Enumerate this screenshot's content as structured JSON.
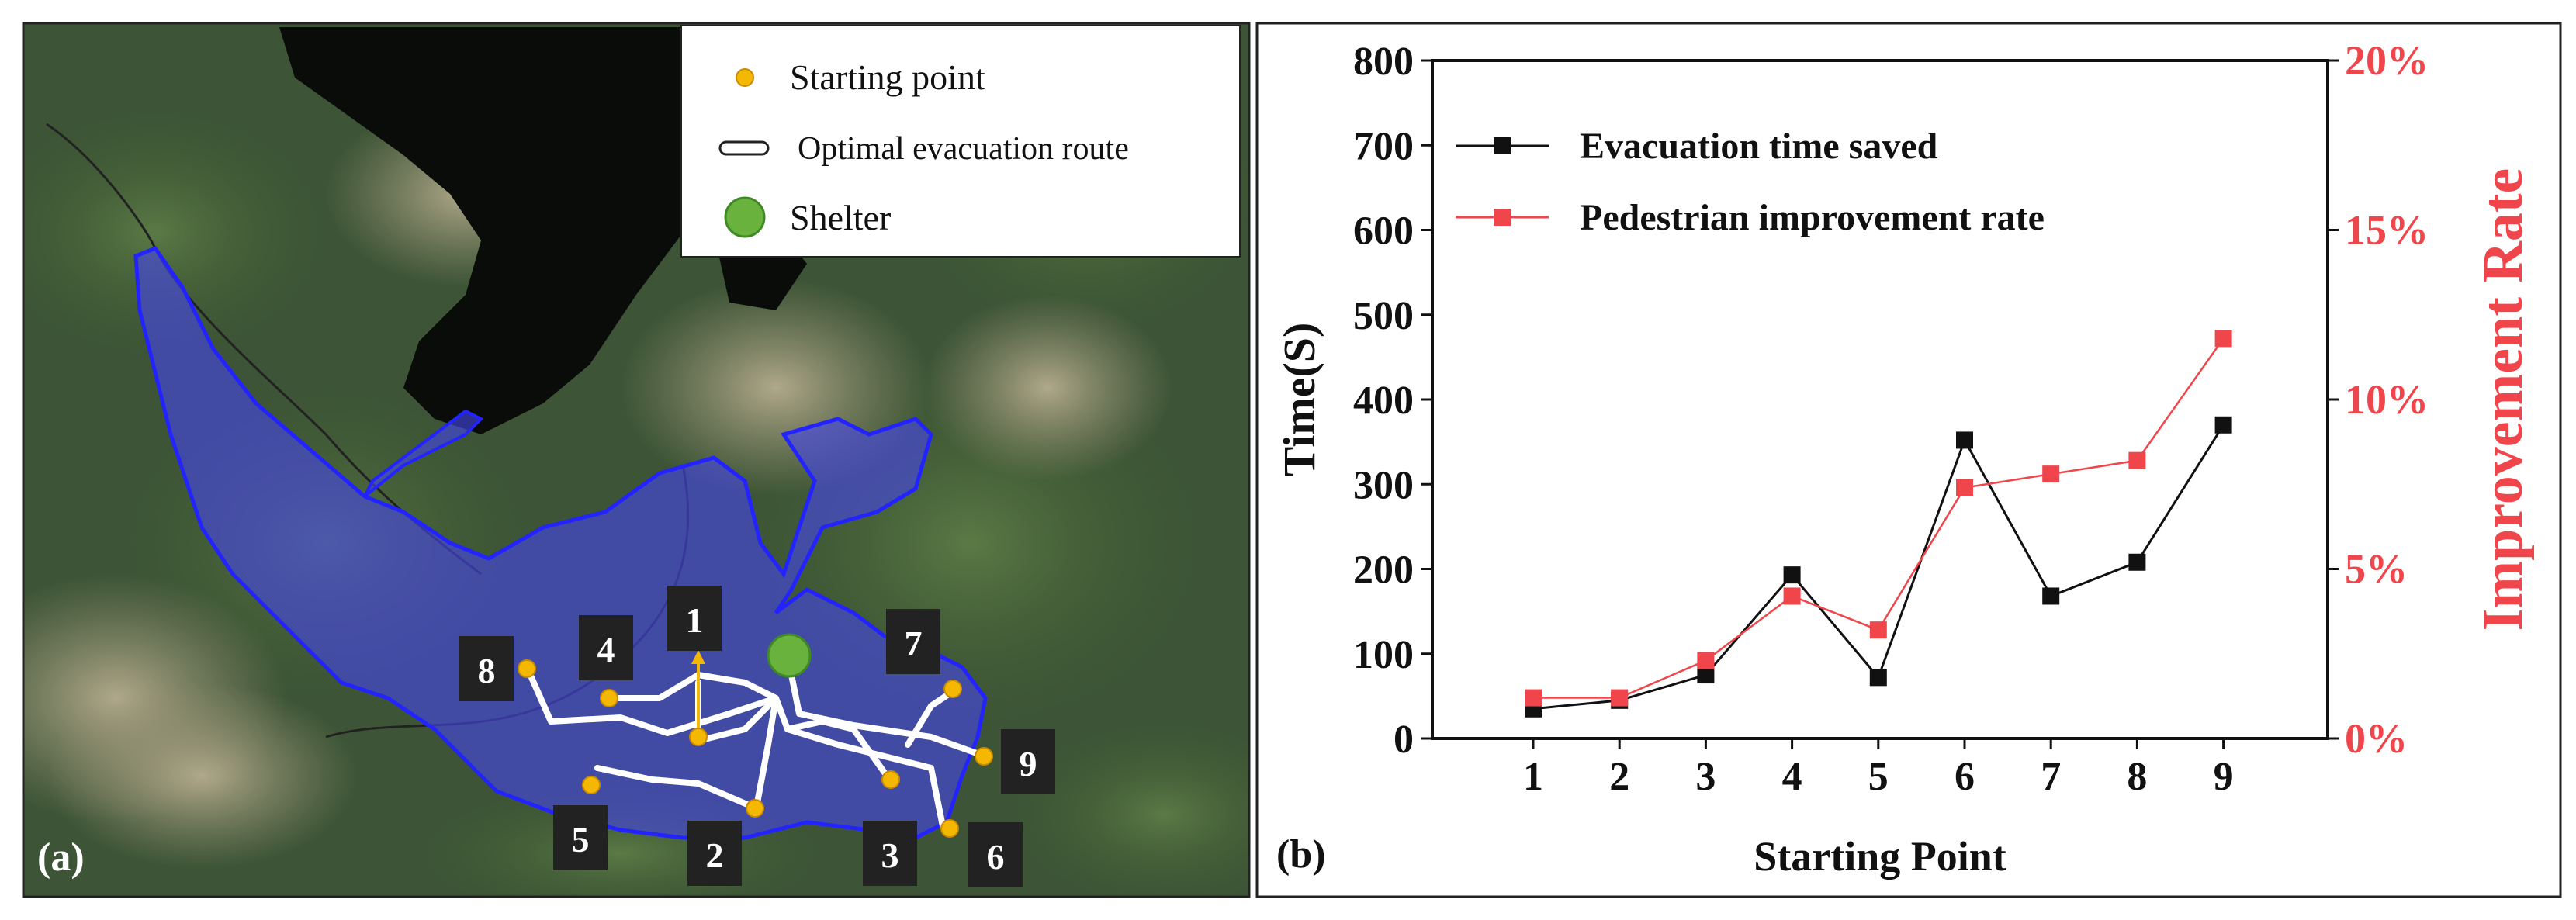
{
  "panel_a": {
    "panel_label": "(a)",
    "legend": {
      "starting_point": "Starting point",
      "route": "Optimal evacuation route",
      "shelter": "Shelter"
    },
    "point_labels": [
      "1",
      "2",
      "3",
      "4",
      "5",
      "6",
      "7",
      "8",
      "9"
    ],
    "colors": {
      "point": "#f5b800",
      "shelter": "#6ab23e",
      "flood_zone": "#3333e6",
      "route": "#ffffff"
    }
  },
  "panel_b": {
    "panel_label": "(b)"
  },
  "chart_data": {
    "type": "line",
    "categories": [
      "1",
      "2",
      "3",
      "4",
      "5",
      "6",
      "7",
      "8",
      "9"
    ],
    "xlabel": "Starting Point",
    "ylabel": "Time(S)",
    "y2label": "Improvement Rate",
    "ylim": [
      0,
      800
    ],
    "y2lim": [
      0,
      20
    ],
    "y_ticks": [
      "0",
      "100",
      "200",
      "300",
      "400",
      "500",
      "600",
      "700",
      "800"
    ],
    "y2_ticks": [
      "0%",
      "5%",
      "10%",
      "15%",
      "20%"
    ],
    "legend_position": "top-left",
    "grid": false,
    "series": [
      {
        "name": "Evacuation time saved",
        "axis": "left",
        "marker": "square",
        "color": "#111111",
        "values": [
          35,
          45,
          75,
          193,
          72,
          352,
          168,
          208,
          370
        ]
      },
      {
        "name": "Pedestrian improvement rate",
        "axis": "right",
        "marker": "square",
        "color": "#f0454b",
        "values": [
          1.2,
          1.2,
          2.3,
          4.2,
          3.2,
          7.4,
          7.8,
          8.2,
          11.8
        ]
      }
    ]
  }
}
